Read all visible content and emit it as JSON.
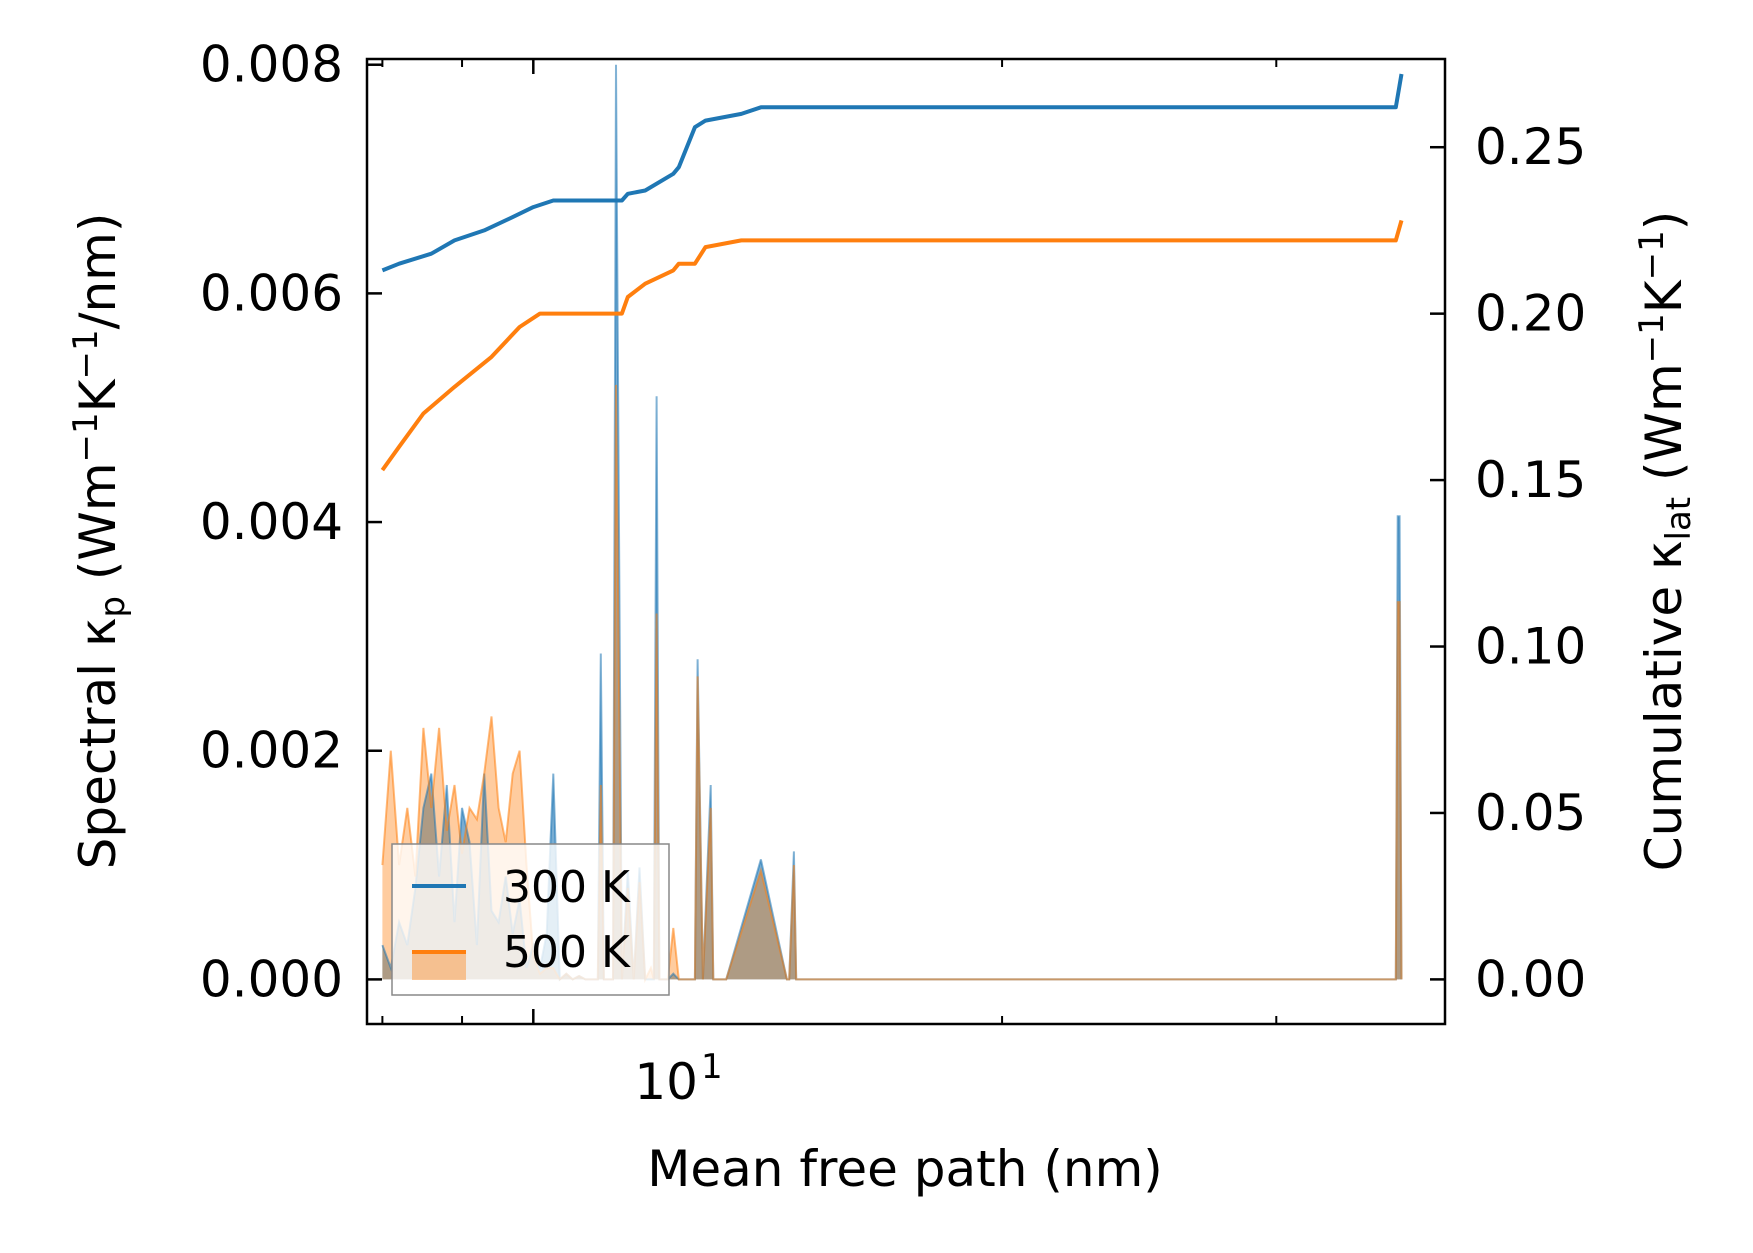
{
  "chart_data": {
    "type": "line",
    "title": "",
    "xlabel": "Mean free path (nm)",
    "ylabel_left": {
      "base": "Spectral κ",
      "sub": "p",
      "units_prefix": " (Wm",
      "exp1": "−1",
      "mid": "K",
      "exp2": "−1",
      "suffix": "/nm)"
    },
    "ylabel_right": {
      "base": "Cumulative κ",
      "sub": "lat",
      "units_prefix": " (Wm",
      "exp1": "−1",
      "mid": "K",
      "exp2": "−1",
      "suffix": ")"
    },
    "xscale": "log",
    "xlim": [
      7.82,
      38.5
    ],
    "x_tick_label": {
      "base": "10",
      "exp": "1",
      "value": 10
    },
    "x_minor_ticks": [
      8,
      9,
      20,
      30
    ],
    "ylim_left": [
      -0.00039,
      0.00805
    ],
    "ylim_right": [
      -0.0134,
      0.2765
    ],
    "yticks_left": [
      {
        "value": 0.0,
        "label": "0.000"
      },
      {
        "value": 0.002,
        "label": "0.002"
      },
      {
        "value": 0.004,
        "label": "0.004"
      },
      {
        "value": 0.006,
        "label": "0.006"
      },
      {
        "value": 0.008,
        "label": "0.008"
      }
    ],
    "yticks_right": [
      {
        "value": 0.0,
        "label": "0.00"
      },
      {
        "value": 0.05,
        "label": "0.05"
      },
      {
        "value": 0.1,
        "label": "0.10"
      },
      {
        "value": 0.15,
        "label": "0.15"
      },
      {
        "value": 0.2,
        "label": "0.20"
      },
      {
        "value": 0.25,
        "label": "0.25"
      }
    ],
    "legend": {
      "placement": "lower-left",
      "entries": [
        "300 K",
        "500 K"
      ]
    },
    "series": [
      {
        "name": "300 K",
        "color": "#1f77b4",
        "spectral": {
          "x": [
            8.0,
            8.1,
            8.2,
            8.3,
            8.4,
            8.5,
            8.6,
            8.7,
            8.8,
            8.9,
            9.0,
            9.1,
            9.2,
            9.3,
            9.4,
            9.5,
            9.6,
            9.7,
            9.8,
            9.9,
            10.0,
            10.1,
            10.2,
            10.3,
            10.4,
            10.5,
            10.6,
            10.7,
            10.8,
            10.9,
            11.0,
            11.05,
            11.1,
            11.18,
            11.25,
            11.3,
            11.4,
            11.5,
            11.6,
            11.7,
            11.8,
            11.9,
            11.95,
            12.0,
            12.05,
            12.2,
            12.3,
            12.4,
            12.45,
            12.5,
            12.6,
            12.65,
            12.7,
            12.75,
            12.85,
            13.0,
            13.05,
            13.1,
            13.15,
            13.3,
            14.0,
            14.55,
            14.6,
            14.7,
            14.75,
            14.85,
            14.9,
            15.0,
            15.1,
            15.5,
            16.0,
            16.05,
            16.1,
            16.2,
            16.65,
            16.7,
            16.75,
            16.85,
            17.5,
            35.8,
            35.9,
            36.0,
            36.1
          ],
          "y": [
            0.0003,
            0.0001,
            0.0005,
            0.0003,
            0.0008,
            0.0015,
            0.0018,
            0.0009,
            0.0017,
            0.0005,
            0.0015,
            0.0012,
            0.0003,
            0.0018,
            0.0006,
            0.0005,
            0.0009,
            0.0004,
            0.0007,
            0.0001,
            0.0003,
            0.0001,
            0.0004,
            0.0018,
            0.0,
            5e-05,
            0.0,
            3e-05,
            0.0,
            0.0,
            0.0,
            0.00285,
            0.0,
            0.0,
            0.0,
            0.008,
            0.0,
            0.00095,
            0.0,
            0.00098,
            0.0,
            0.0,
            0.0,
            0.0051,
            0.0,
            0.0,
            5e-05,
            0.0,
            0.0,
            0.0,
            0.0,
            0.0,
            0.0,
            0.0028,
            0.0,
            0.0017,
            0.0,
            0.0,
            0.0,
            0.0,
            0.00105,
            0.0,
            0.0,
            0.00112,
            0.0,
            0.0,
            0.0,
            0.0,
            0.0,
            0.0,
            0.0,
            0.0,
            0.0,
            0.0,
            0.0,
            0.0,
            0.0,
            0.0,
            0.0,
            0.0,
            0.00405,
            0.00405,
            0.0
          ]
        },
        "cumulative": {
          "x": [
            8.0,
            8.2,
            8.6,
            8.9,
            9.3,
            9.7,
            10.0,
            10.3,
            11.4,
            11.5,
            11.8,
            12.3,
            12.4,
            12.7,
            12.9,
            13.6,
            14.0,
            35.8,
            36.1
          ],
          "y": [
            0.213,
            0.215,
            0.218,
            0.222,
            0.225,
            0.229,
            0.232,
            0.234,
            0.234,
            0.236,
            0.237,
            0.242,
            0.244,
            0.256,
            0.258,
            0.26,
            0.262,
            0.262,
            0.272
          ]
        }
      },
      {
        "name": "500 K",
        "color": "#ff7f0e",
        "spectral": {
          "x": [
            8.0,
            8.1,
            8.2,
            8.3,
            8.4,
            8.5,
            8.6,
            8.7,
            8.8,
            8.9,
            9.0,
            9.1,
            9.2,
            9.3,
            9.4,
            9.5,
            9.6,
            9.7,
            9.8,
            9.9,
            10.0,
            10.1,
            10.2,
            10.3,
            10.4,
            10.5,
            10.6,
            10.7,
            10.8,
            10.9,
            11.0,
            11.05,
            11.1,
            11.18,
            11.25,
            11.3,
            11.4,
            11.5,
            11.6,
            11.7,
            11.8,
            11.9,
            11.95,
            12.0,
            12.05,
            12.2,
            12.3,
            12.4,
            12.45,
            12.5,
            12.6,
            12.65,
            12.7,
            12.75,
            12.85,
            13.0,
            13.05,
            13.1,
            13.15,
            13.3,
            14.0,
            14.55,
            14.6,
            14.7,
            14.75,
            14.85,
            14.9,
            15.0,
            15.1,
            15.5,
            16.0,
            16.05,
            16.1,
            16.2,
            16.65,
            16.7,
            16.75,
            16.85,
            17.5,
            35.8,
            35.9,
            36.0,
            36.1
          ],
          "y": [
            0.001,
            0.002,
            0.001,
            0.0015,
            0.0009,
            0.0022,
            0.0015,
            0.0022,
            0.0013,
            0.0017,
            0.0011,
            0.0015,
            0.0014,
            0.0018,
            0.0023,
            0.0015,
            0.0012,
            0.0018,
            0.002,
            0.001,
            0.0002,
            5e-05,
            0.0001,
            0.0001,
            0.0,
            5e-05,
            0.0,
            3e-05,
            0.0,
            0.0,
            0.0,
            0.0017,
            0.0,
            0.0,
            0.0,
            0.0052,
            0.0,
            0.0008,
            0.0,
            0.00085,
            0.0,
            0.0001,
            0.0,
            0.0032,
            0.0,
            0.0,
            0.00045,
            0.0,
            0.0,
            0.0,
            0.0,
            0.0,
            0.0,
            0.00265,
            0.0,
            0.0015,
            0.0,
            0.0,
            0.0,
            0.0,
            0.00095,
            0.0,
            0.0,
            0.001,
            0.0,
            0.0,
            0.0,
            0.0,
            0.0,
            0.0,
            0.0,
            0.0,
            0.0,
            0.0,
            0.0,
            0.0,
            0.0,
            0.0,
            0.0,
            0.0,
            0.0033,
            0.0033,
            0.0
          ]
        },
        "cumulative": {
          "x": [
            8.0,
            8.2,
            8.5,
            8.9,
            9.4,
            9.8,
            10.1,
            10.4,
            11.4,
            11.5,
            11.8,
            12.3,
            12.4,
            12.7,
            12.9,
            13.6,
            14.0,
            35.8,
            36.1
          ],
          "y": [
            0.153,
            0.16,
            0.17,
            0.178,
            0.187,
            0.196,
            0.2,
            0.2,
            0.2,
            0.205,
            0.209,
            0.213,
            0.215,
            0.215,
            0.22,
            0.222,
            0.222,
            0.222,
            0.228
          ]
        }
      }
    ]
  }
}
